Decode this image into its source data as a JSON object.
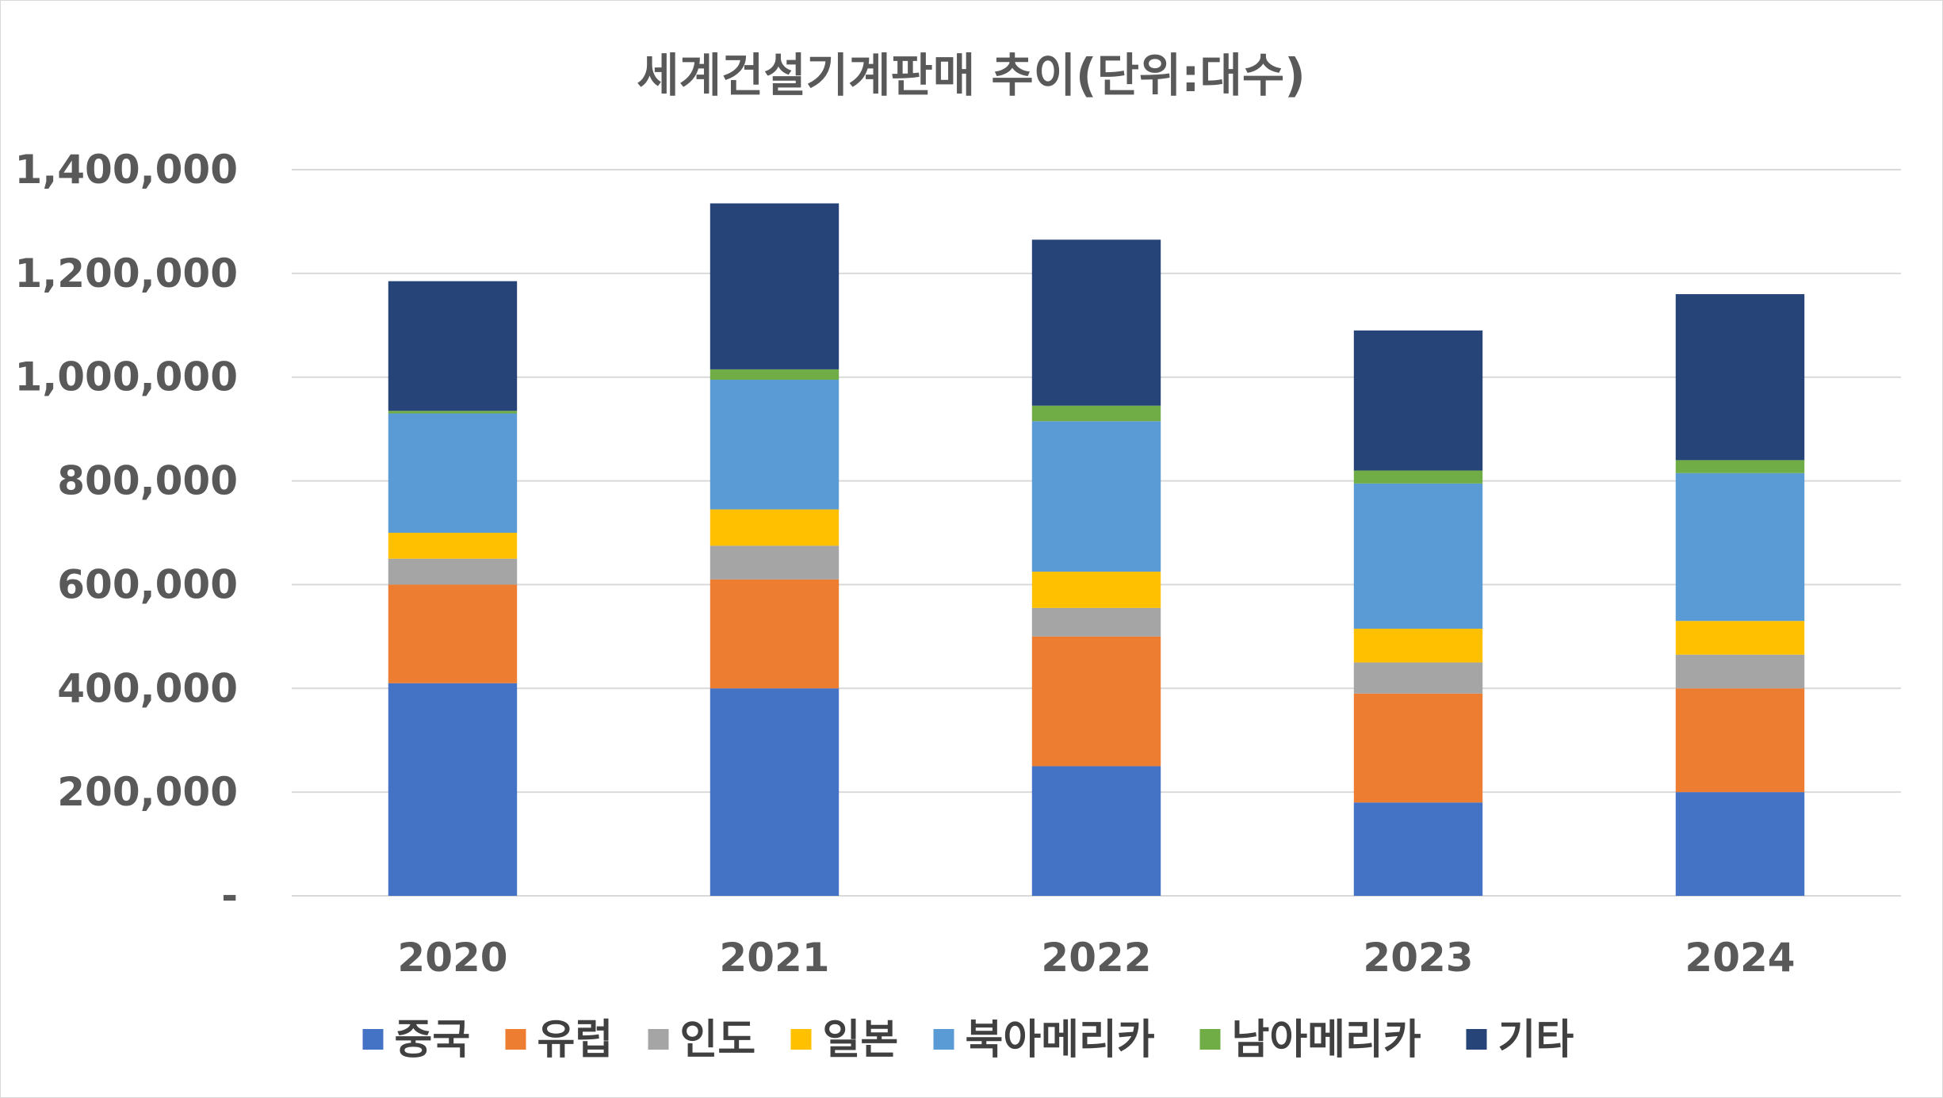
{
  "chart_data": {
    "type": "bar",
    "stacked": true,
    "title": "세계건설기계판매 추이(단위:대수)",
    "categories": [
      "2020",
      "2021",
      "2022",
      "2023",
      "2024"
    ],
    "ylim": [
      0,
      1400000
    ],
    "yticks": [
      {
        "value": 0,
        "label": "-"
      },
      {
        "value": 200000,
        "label": "200,000"
      },
      {
        "value": 400000,
        "label": "400,000"
      },
      {
        "value": 600000,
        "label": "600,000"
      },
      {
        "value": 800000,
        "label": "800,000"
      },
      {
        "value": 1000000,
        "label": "1,000,000"
      },
      {
        "value": 1200000,
        "label": "1,200,000"
      },
      {
        "value": 1400000,
        "label": "1,400,000"
      }
    ],
    "grid": true,
    "legend_position": "bottom",
    "series": [
      {
        "name": "중국",
        "color": "#4472C4",
        "values": [
          410000,
          400000,
          250000,
          180000,
          200000
        ]
      },
      {
        "name": "유럽",
        "color": "#ED7D31",
        "values": [
          190000,
          210000,
          250000,
          210000,
          200000
        ]
      },
      {
        "name": "인도",
        "color": "#A5A5A5",
        "values": [
          50000,
          65000,
          55000,
          60000,
          65000
        ]
      },
      {
        "name": "일본",
        "color": "#FFC000",
        "values": [
          50000,
          70000,
          70000,
          65000,
          65000
        ]
      },
      {
        "name": "북아메리카",
        "color": "#5B9BD5",
        "values": [
          230000,
          250000,
          290000,
          280000,
          285000
        ]
      },
      {
        "name": "남아메리카",
        "color": "#70AD47",
        "values": [
          5000,
          20000,
          30000,
          25000,
          25000
        ]
      },
      {
        "name": "기타",
        "color": "#264478",
        "values": [
          250000,
          320000,
          320000,
          270000,
          320000
        ]
      }
    ]
  }
}
